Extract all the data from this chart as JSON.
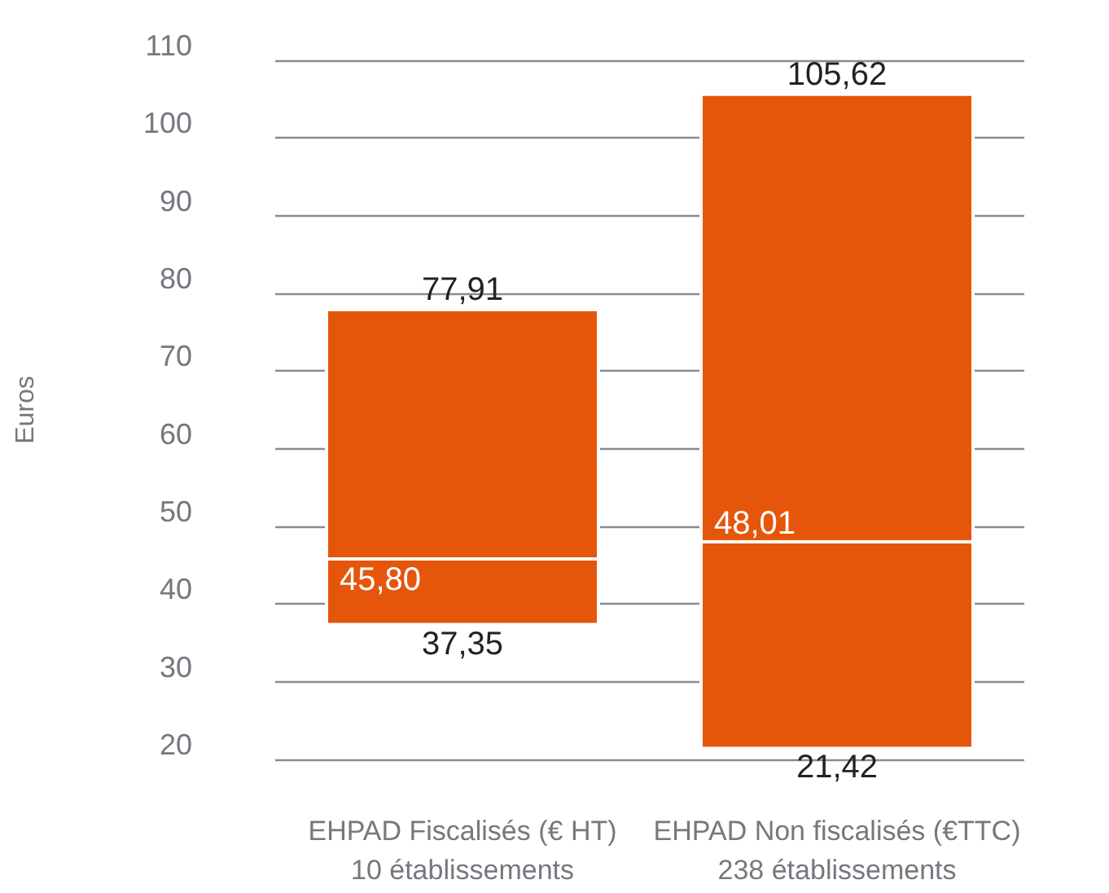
{
  "chart_data": {
    "type": "bar",
    "ylabel": "Euros",
    "categories": [
      "EHPAD Fiscalisés (€ HT)\n10 établissements",
      "EHPAD Non fiscalisés (€TTC)\n238 établissements"
    ],
    "series": [
      {
        "color": "#e5560b",
        "base": [
          37.35,
          21.42
        ],
        "values": [
          8.45,
          26.59
        ]
      },
      {
        "color": "#e5560b",
        "base": [
          45.8,
          48.01
        ],
        "values": [
          32.11,
          57.61
        ]
      }
    ],
    "ylim": [
      20,
      110
    ],
    "yticks": [
      20,
      30,
      40,
      50,
      60,
      70,
      80,
      90,
      100,
      110
    ],
    "grid": "y",
    "annotations": [
      {
        "text": "77,91",
        "x": "EHPAD Fiscalisés (€ HT)\n10 établissements",
        "y": 77.91
      },
      {
        "text": "45,80",
        "x": "EHPAD Fiscalisés (€ HT)\n10 établissements",
        "y": 45.8
      },
      {
        "text": "37,35",
        "x": "EHPAD Fiscalisés (€ HT)\n10 établissements",
        "y": 37.35
      },
      {
        "text": "105,62",
        "x": "EHPAD Non fiscalisés (€TTC)\n238 établissements",
        "y": 105.62
      },
      {
        "text": "48,01",
        "x": "EHPAD Non fiscalisés (€TTC)\n238 établissements",
        "y": 48.01
      },
      {
        "text": "21,42",
        "x": "EHPAD Non fiscalisés (€TTC)\n238 établissements",
        "y": 21.42
      }
    ]
  }
}
